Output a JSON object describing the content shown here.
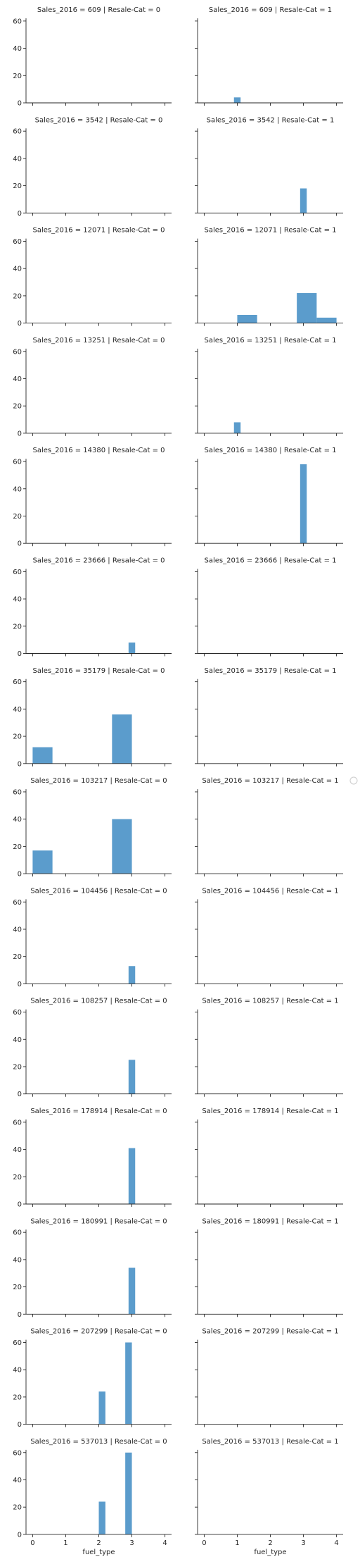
{
  "chart_data": {
    "type": "bar",
    "grid": false,
    "legend": "right",
    "colors": {
      "bar": "#5b9ccc",
      "axis": "#262626"
    },
    "xlabel": "fuel_type",
    "xlim": [
      -0.2,
      4.2
    ],
    "ylim": [
      0,
      62
    ],
    "xticks": [
      "0",
      "1",
      "2",
      "3",
      "4"
    ],
    "yticks": [
      "0",
      "20",
      "40",
      "60"
    ],
    "facets": [
      {
        "title": "Sales_2016 = 609 | Resale-Cat = 0",
        "bars": []
      },
      {
        "title": "Sales_2016 = 609 | Resale-Cat = 1",
        "bars": [
          {
            "x0": 0.9,
            "x1": 1.1,
            "y": 4
          }
        ]
      },
      {
        "title": "Sales_2016 = 3542 | Resale-Cat = 0",
        "bars": []
      },
      {
        "title": "Sales_2016 = 3542 | Resale-Cat = 1",
        "bars": [
          {
            "x0": 2.9,
            "x1": 3.1,
            "y": 18
          }
        ]
      },
      {
        "title": "Sales_2016 = 12071 | Resale-Cat = 0",
        "bars": []
      },
      {
        "title": "Sales_2016 = 12071 | Resale-Cat = 1",
        "bars": [
          {
            "x0": 1.0,
            "x1": 1.6,
            "y": 6
          },
          {
            "x0": 2.8,
            "x1": 3.4,
            "y": 22
          },
          {
            "x0": 3.4,
            "x1": 4.0,
            "y": 4
          }
        ]
      },
      {
        "title": "Sales_2016 = 13251 | Resale-Cat = 0",
        "bars": []
      },
      {
        "title": "Sales_2016 = 13251 | Resale-Cat = 1",
        "bars": [
          {
            "x0": 0.9,
            "x1": 1.1,
            "y": 8
          }
        ]
      },
      {
        "title": "Sales_2016 = 14380 | Resale-Cat = 0",
        "bars": []
      },
      {
        "title": "Sales_2016 = 14380 | Resale-Cat = 1",
        "bars": [
          {
            "x0": 2.9,
            "x1": 3.1,
            "y": 58
          }
        ]
      },
      {
        "title": "Sales_2016 = 23666 | Resale-Cat = 0",
        "bars": [
          {
            "x0": 2.9,
            "x1": 3.1,
            "y": 8
          }
        ]
      },
      {
        "title": "Sales_2016 = 23666 | Resale-Cat = 1",
        "bars": []
      },
      {
        "title": "Sales_2016 = 35179 | Resale-Cat = 0",
        "bars": [
          {
            "x0": 0.0,
            "x1": 0.6,
            "y": 12
          },
          {
            "x0": 2.4,
            "x1": 3.0,
            "y": 36
          }
        ]
      },
      {
        "title": "Sales_2016 = 35179 | Resale-Cat = 1",
        "bars": []
      },
      {
        "title": "Sales_2016 = 103217 | Resale-Cat = 0",
        "bars": [
          {
            "x0": 0.0,
            "x1": 0.6,
            "y": 17
          },
          {
            "x0": 2.4,
            "x1": 3.0,
            "y": 40
          }
        ]
      },
      {
        "title": "Sales_2016 = 103217 | Resale-Cat = 1",
        "bars": []
      },
      {
        "title": "Sales_2016 = 104456 | Resale-Cat = 0",
        "bars": [
          {
            "x0": 2.9,
            "x1": 3.1,
            "y": 13
          }
        ]
      },
      {
        "title": "Sales_2016 = 104456 | Resale-Cat = 1",
        "bars": []
      },
      {
        "title": "Sales_2016 = 108257 | Resale-Cat = 0",
        "bars": [
          {
            "x0": 2.9,
            "x1": 3.1,
            "y": 25
          }
        ]
      },
      {
        "title": "Sales_2016 = 108257 | Resale-Cat = 1",
        "bars": []
      },
      {
        "title": "Sales_2016 = 178914 | Resale-Cat = 0",
        "bars": [
          {
            "x0": 2.9,
            "x1": 3.1,
            "y": 41
          }
        ]
      },
      {
        "title": "Sales_2016 = 178914 | Resale-Cat = 1",
        "bars": []
      },
      {
        "title": "Sales_2016 = 180991 | Resale-Cat = 0",
        "bars": [
          {
            "x0": 2.9,
            "x1": 3.1,
            "y": 34
          }
        ]
      },
      {
        "title": "Sales_2016 = 180991 | Resale-Cat = 1",
        "bars": []
      },
      {
        "title": "Sales_2016 = 207299 | Resale-Cat = 0",
        "bars": [
          {
            "x0": 2.0,
            "x1": 2.2,
            "y": 24
          },
          {
            "x0": 2.8,
            "x1": 3.0,
            "y": 60
          }
        ]
      },
      {
        "title": "Sales_2016 = 207299 | Resale-Cat = 1",
        "bars": []
      },
      {
        "title": "Sales_2016 = 537013 | Resale-Cat = 0",
        "bars": [
          {
            "x0": 2.0,
            "x1": 2.2,
            "y": 24
          },
          {
            "x0": 2.8,
            "x1": 3.0,
            "y": 60
          }
        ]
      },
      {
        "title": "Sales_2016 = 537013 | Resale-Cat = 1",
        "bars": []
      }
    ]
  }
}
